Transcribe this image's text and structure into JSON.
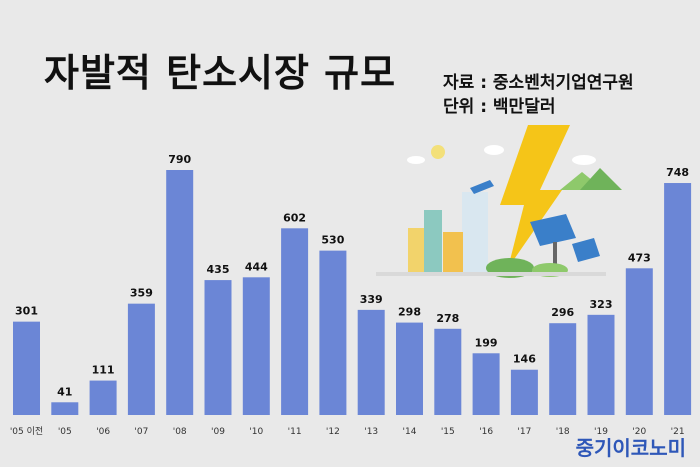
{
  "title": "자발적 탄소시장 규모",
  "source_line": "자료 : 중소벤처기업연구원",
  "unit_line": "단위 : 백만달러",
  "brand": "중기이코노미",
  "colors": {
    "bar": "#6b86d6",
    "background": "#e9e9e9",
    "brand": "#2e57b8"
  },
  "illustration": "city-renewable-energy-lightning-icon",
  "chart_data": {
    "type": "bar",
    "title": "자발적 탄소시장 규모",
    "xlabel": "",
    "ylabel": "",
    "unit": "백만달러",
    "categories": [
      "'05 이전",
      "'05",
      "'06",
      "'07",
      "'08",
      "'09",
      "'10",
      "'11",
      "'12",
      "'13",
      "'14",
      "'15",
      "'16",
      "'17",
      "'18",
      "'19",
      "'20",
      "'21"
    ],
    "values": [
      301,
      41,
      111,
      359,
      790,
      435,
      444,
      602,
      530,
      339,
      298,
      278,
      199,
      146,
      296,
      323,
      473,
      748
    ],
    "ylim": [
      0,
      790
    ],
    "grid": false,
    "legend": "none"
  }
}
